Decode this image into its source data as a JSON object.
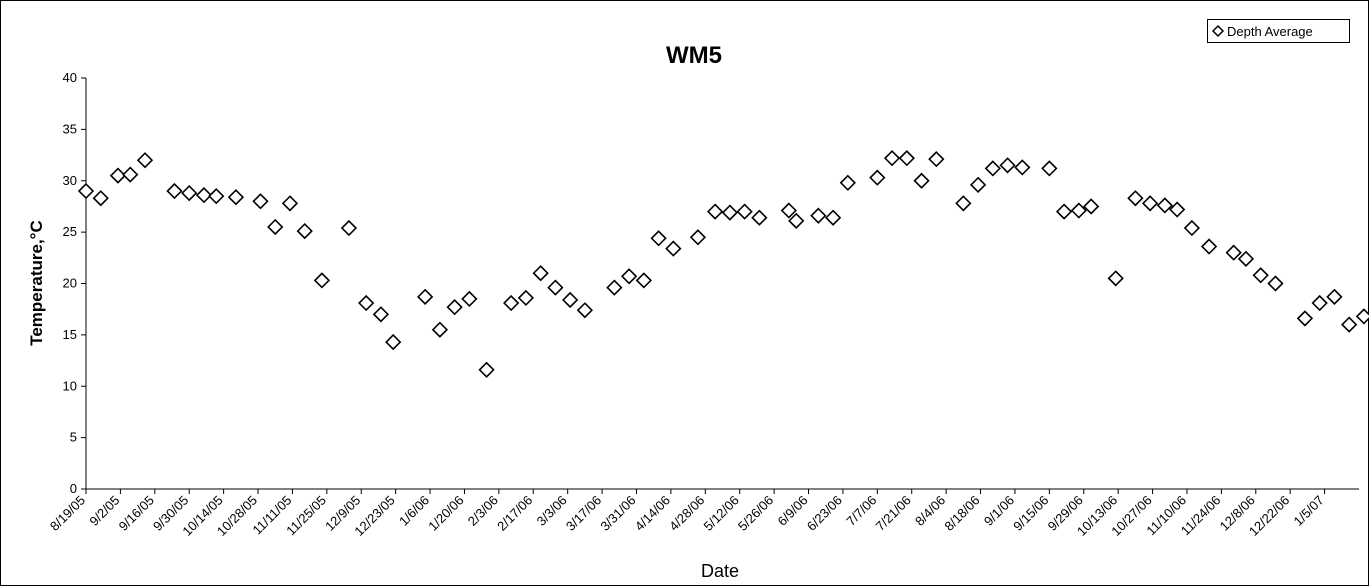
{
  "chart_data": {
    "type": "scatter",
    "title": "WM5",
    "xlabel": "Date",
    "ylabel": "Temperature,°C",
    "ylim": [
      0,
      40
    ],
    "yticks": [
      0,
      5,
      10,
      15,
      20,
      25,
      30,
      35,
      40
    ],
    "xlim": [
      "2005-08-19",
      "2007-01-19"
    ],
    "xtick_labels": [
      "8/19/05",
      "9/2/05",
      "9/16/05",
      "9/30/05",
      "10/14/05",
      "10/28/05",
      "11/11/05",
      "11/25/05",
      "12/9/05",
      "12/23/05",
      "1/6/06",
      "1/20/06",
      "2/3/06",
      "2/17/06",
      "3/3/06",
      "3/17/06",
      "3/31/06",
      "4/14/06",
      "4/28/06",
      "5/12/06",
      "5/26/06",
      "6/9/06",
      "6/23/06",
      "7/7/06",
      "7/21/06",
      "8/4/06",
      "8/18/06",
      "9/1/06",
      "9/15/06",
      "9/29/06",
      "10/13/06",
      "10/27/06",
      "11/10/06",
      "11/24/06",
      "12/8/06",
      "12/22/06",
      "1/5/07"
    ],
    "grid": false,
    "legend_position": "top-right",
    "series": [
      {
        "name": "Depth Average",
        "marker": "diamond",
        "color": "#000000",
        "points": [
          [
            "2005-08-19",
            29.0
          ],
          [
            "2005-08-25",
            28.3
          ],
          [
            "2005-09-01",
            30.5
          ],
          [
            "2005-09-06",
            30.6
          ],
          [
            "2005-09-12",
            32.0
          ],
          [
            "2005-09-24",
            29.0
          ],
          [
            "2005-09-30",
            28.8
          ],
          [
            "2005-10-06",
            28.6
          ],
          [
            "2005-10-11",
            28.5
          ],
          [
            "2005-10-19",
            28.4
          ],
          [
            "2005-10-29",
            28.0
          ],
          [
            "2005-11-04",
            25.5
          ],
          [
            "2005-11-10",
            27.8
          ],
          [
            "2005-11-16",
            25.1
          ],
          [
            "2005-11-23",
            20.3
          ],
          [
            "2005-12-04",
            25.4
          ],
          [
            "2005-12-11",
            18.1
          ],
          [
            "2005-12-17",
            17.0
          ],
          [
            "2005-12-22",
            14.3
          ],
          [
            "2006-01-04",
            18.7
          ],
          [
            "2006-01-10",
            15.5
          ],
          [
            "2006-01-16",
            17.7
          ],
          [
            "2006-01-22",
            18.5
          ],
          [
            "2006-01-29",
            11.6
          ],
          [
            "2006-02-08",
            18.1
          ],
          [
            "2006-02-14",
            18.6
          ],
          [
            "2006-02-20",
            21.0
          ],
          [
            "2006-02-26",
            19.6
          ],
          [
            "2006-03-04",
            18.4
          ],
          [
            "2006-03-10",
            17.4
          ],
          [
            "2006-03-22",
            19.6
          ],
          [
            "2006-03-28",
            20.7
          ],
          [
            "2006-04-03",
            20.3
          ],
          [
            "2006-04-09",
            24.4
          ],
          [
            "2006-04-15",
            23.4
          ],
          [
            "2006-04-25",
            24.5
          ],
          [
            "2006-05-02",
            27.0
          ],
          [
            "2006-05-08",
            26.9
          ],
          [
            "2006-05-14",
            27.0
          ],
          [
            "2006-05-20",
            26.4
          ],
          [
            "2006-06-01",
            27.1
          ],
          [
            "2006-06-04",
            26.1
          ],
          [
            "2006-06-13",
            26.6
          ],
          [
            "2006-06-19",
            26.4
          ],
          [
            "2006-06-25",
            29.8
          ],
          [
            "2006-07-07",
            30.3
          ],
          [
            "2006-07-13",
            32.2
          ],
          [
            "2006-07-19",
            32.2
          ],
          [
            "2006-07-25",
            30.0
          ],
          [
            "2006-07-31",
            32.1
          ],
          [
            "2006-08-11",
            27.8
          ],
          [
            "2006-08-17",
            29.6
          ],
          [
            "2006-08-23",
            31.2
          ],
          [
            "2006-08-29",
            31.5
          ],
          [
            "2006-09-04",
            31.3
          ],
          [
            "2006-09-15",
            31.2
          ],
          [
            "2006-09-21",
            27.0
          ],
          [
            "2006-09-27",
            27.1
          ],
          [
            "2006-10-02",
            27.5
          ],
          [
            "2006-10-12",
            20.5
          ],
          [
            "2006-10-20",
            28.3
          ],
          [
            "2006-10-26",
            27.8
          ],
          [
            "2006-11-01",
            27.6
          ],
          [
            "2006-11-06",
            27.2
          ],
          [
            "2006-11-12",
            25.4
          ],
          [
            "2006-11-19",
            23.6
          ],
          [
            "2006-11-29",
            23.0
          ],
          [
            "2006-12-04",
            22.4
          ],
          [
            "2006-12-10",
            20.8
          ],
          [
            "2006-12-16",
            20.0
          ],
          [
            "2006-12-28",
            16.6
          ],
          [
            "2007-01-03",
            18.1
          ],
          [
            "2007-01-09",
            18.7
          ],
          [
            "2007-01-15",
            16.0
          ],
          [
            "2007-01-21",
            16.8
          ]
        ]
      }
    ]
  }
}
